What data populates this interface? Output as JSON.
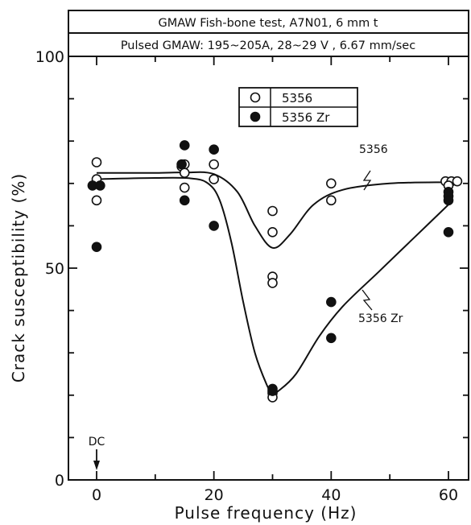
{
  "chart_data": {
    "type": "scatter",
    "header_lines": [
      "GMAW Fish-bone test,   A7N01,  6 mm t",
      "Pulsed GMAW: 195~205A,  28~29 V , 6.67 mm/sec"
    ],
    "xlabel": "Pulse frequency (Hz)",
    "ylabel": "Crack susceptibility (%)",
    "xlim": [
      -6,
      64
    ],
    "ylim": [
      0,
      100
    ],
    "x_ticks": [
      0,
      20,
      40,
      60
    ],
    "y_ticks": [
      0,
      50,
      100
    ],
    "grid": false,
    "legend_position": "top-center",
    "dc_marker": {
      "label": "DC",
      "x": 0
    },
    "series": [
      {
        "name": "5356",
        "marker": "open-circle",
        "points": [
          [
            0,
            75
          ],
          [
            0,
            71
          ],
          [
            0,
            66
          ],
          [
            14.5,
            74
          ],
          [
            15,
            74.5
          ],
          [
            15,
            72.5
          ],
          [
            15,
            69
          ],
          [
            20,
            74.5
          ],
          [
            20,
            71
          ],
          [
            30,
            63.5
          ],
          [
            30,
            58.5
          ],
          [
            30,
            48
          ],
          [
            30,
            46.5
          ],
          [
            30,
            20.5
          ],
          [
            30,
            19.5
          ],
          [
            40,
            70
          ],
          [
            40,
            66
          ],
          [
            59.5,
            70.5
          ],
          [
            60.5,
            70.5
          ],
          [
            61.5,
            70.5
          ],
          [
            60,
            69.5
          ]
        ],
        "curve": [
          [
            0,
            72.5
          ],
          [
            10,
            72.5
          ],
          [
            15,
            72.6
          ],
          [
            20,
            72.2
          ],
          [
            24,
            68
          ],
          [
            27,
            60
          ],
          [
            30,
            54.8
          ],
          [
            33,
            58
          ],
          [
            37,
            65
          ],
          [
            42,
            68.5
          ],
          [
            50,
            70
          ],
          [
            60,
            70.3
          ]
        ]
      },
      {
        "name": "5356 Zr",
        "marker": "filled-circle",
        "points": [
          [
            -0.7,
            69.5
          ],
          [
            0.6,
            69.5
          ],
          [
            0,
            55
          ],
          [
            14.5,
            74.5
          ],
          [
            15,
            79
          ],
          [
            15,
            66
          ],
          [
            20,
            78
          ],
          [
            20,
            60
          ],
          [
            30,
            21.5
          ],
          [
            30,
            21
          ],
          [
            40,
            42
          ],
          [
            40,
            33.5
          ],
          [
            60,
            68
          ],
          [
            60,
            67
          ],
          [
            60,
            66
          ],
          [
            60,
            58.5
          ]
        ],
        "curve": [
          [
            0,
            71
          ],
          [
            10,
            71.3
          ],
          [
            16,
            71.2
          ],
          [
            19,
            70
          ],
          [
            21,
            66
          ],
          [
            23,
            56
          ],
          [
            25,
            42
          ],
          [
            27,
            30
          ],
          [
            29,
            22.5
          ],
          [
            30,
            20.5
          ],
          [
            31,
            21
          ],
          [
            34,
            25
          ],
          [
            38,
            34
          ],
          [
            42,
            41
          ],
          [
            48,
            49
          ],
          [
            54,
            57
          ],
          [
            60,
            65
          ]
        ]
      }
    ],
    "annotations": [
      {
        "text": "5356",
        "series": "5356"
      },
      {
        "text": "5356 Zr",
        "series": "5356 Zr"
      }
    ]
  }
}
